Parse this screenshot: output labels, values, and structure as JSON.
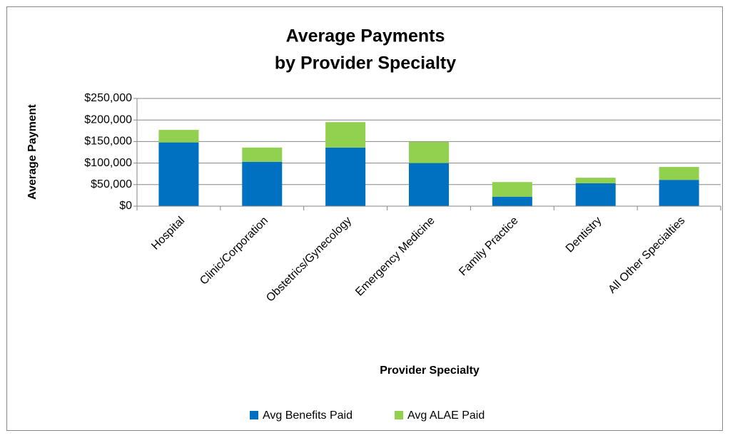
{
  "chart_data": {
    "type": "stacked-bar",
    "title": [
      "Average Payments",
      "by Provider Specialty"
    ],
    "x_label": "Provider Specialty",
    "y_label": "Average Payment",
    "categories": [
      "Hospital",
      "Clinic/Corporation",
      "Obstetrics/Gynecology",
      "Emergency Medicine",
      "Family Practice",
      "Dentistry",
      "All Other Specialties"
    ],
    "series": [
      {
        "name": "Avg Benefits Paid",
        "color": "#0070c0",
        "values": [
          148000,
          103000,
          136000,
          100000,
          22000,
          53000,
          61000
        ]
      },
      {
        "name": "Avg ALAE Paid",
        "color": "#92d050",
        "values": [
          29000,
          33000,
          59000,
          49000,
          34000,
          13000,
          30000
        ]
      }
    ],
    "ylim": [
      0,
      250000
    ],
    "yticks": [
      {
        "value": 0,
        "label": "$0"
      },
      {
        "value": 50000,
        "label": "$50,000"
      },
      {
        "value": 100000,
        "label": "$100,000"
      },
      {
        "value": 150000,
        "label": "$150,000"
      },
      {
        "value": 200000,
        "label": "$200,000"
      },
      {
        "value": 250000,
        "label": "$250,000"
      }
    ],
    "grid": true,
    "legend": "bottom"
  }
}
